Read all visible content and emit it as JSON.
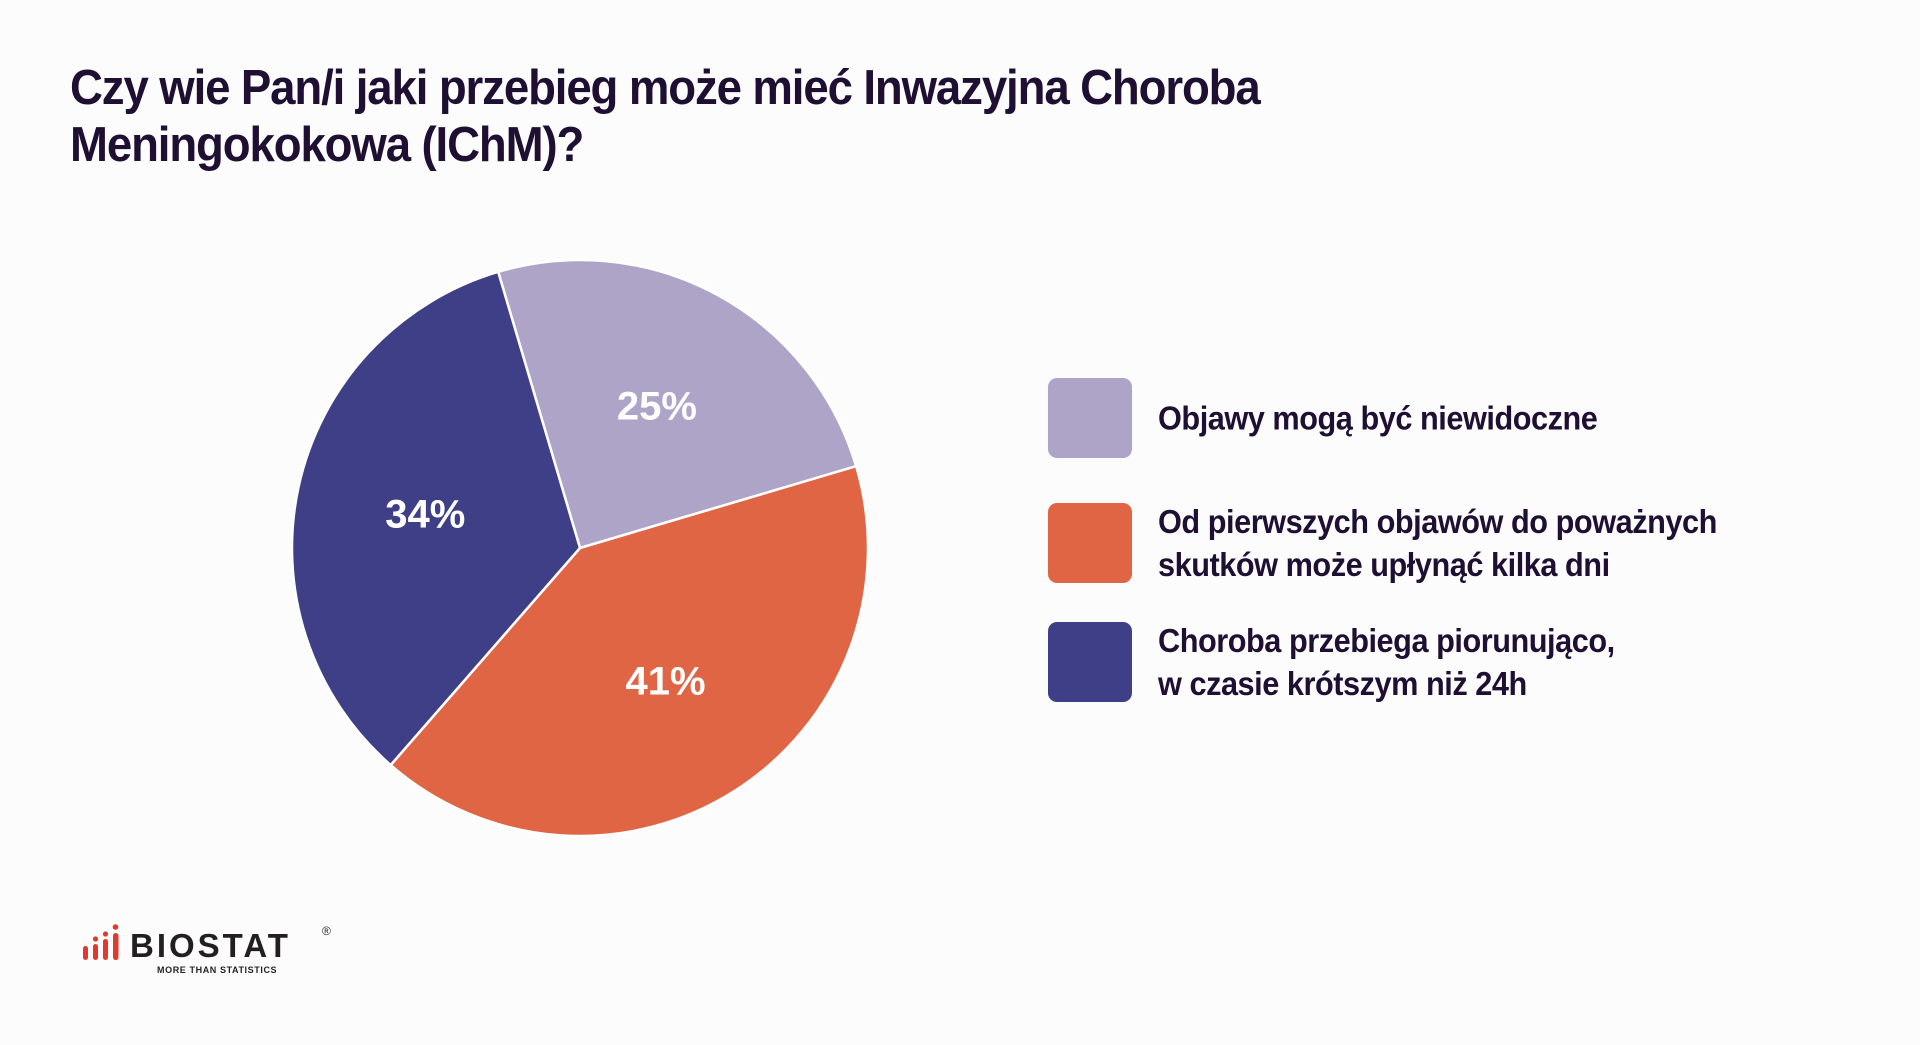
{
  "title": {
    "line1": "Czy wie Pan/i jaki przebieg może mieć Inwazyjna Choroba",
    "line2": "Meningokokowa (IChM)?"
  },
  "chart_data": {
    "type": "pie",
    "title": "Czy wie Pan/i jaki przebieg może mieć Inwazyjna Choroba Meningokokowa (IChM)?",
    "categories": [
      "Objawy mogą być niewidoczne",
      "Od pierwszych objawów do poważnych skutków może upłynąć kilka dni",
      "Choroba przebiega piorunująco, w czasie krótszym niż 24h"
    ],
    "values": [
      25,
      41,
      34
    ],
    "unit": "%",
    "colors": [
      "#aea4c8",
      "#e06545",
      "#3f3f87"
    ],
    "labels": [
      "25%",
      "41%",
      "34%"
    ],
    "start_angle_deg": -16.5,
    "direction": "clockwise",
    "legend_position": "right"
  },
  "legend": {
    "items": [
      {
        "lines": [
          "Objawy mogą być niewidoczne"
        ],
        "color": "#aea4c8"
      },
      {
        "lines": [
          "Od pierwszych objawów do poważnych",
          "skutków może upłynąć kilka dni"
        ],
        "color": "#e06545"
      },
      {
        "lines": [
          "Choroba przebiega piorunująco,",
          "w czasie krótszym niż 24h"
        ],
        "color": "#3f3f87"
      }
    ]
  },
  "logo": {
    "name": "BIOSTAT",
    "registered": "®",
    "tagline": "MORE THAN STATISTICS",
    "accent": "#e03a2f"
  },
  "colors": {
    "background": "#fdfcfd",
    "text": "#1e0f33"
  }
}
